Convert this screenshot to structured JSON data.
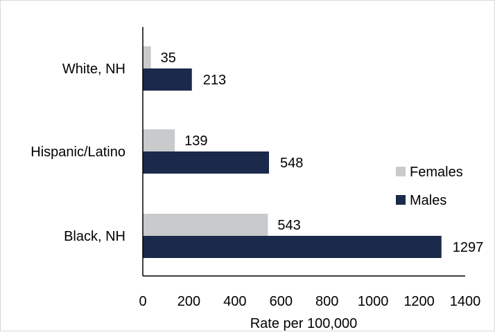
{
  "chart_data": {
    "type": "bar",
    "orientation": "horizontal",
    "categories": [
      "White, NH",
      "Hispanic/Latino",
      "Black, NH"
    ],
    "series": [
      {
        "name": "Females",
        "values": [
          35,
          139,
          543
        ],
        "color": "#c8cacb"
      },
      {
        "name": "Males",
        "values": [
          213,
          548,
          1297
        ],
        "color": "#1b2a4a"
      }
    ],
    "xlabel": "Rate per 100,000",
    "ylabel": "",
    "title": "",
    "xlim": [
      0,
      1400
    ],
    "xticks": [
      "0",
      "200",
      "400",
      "600",
      "800",
      "1000",
      "1200",
      "1400"
    ],
    "data_labels": [
      [
        "35",
        "139",
        "543"
      ],
      [
        "213",
        "548",
        "1297"
      ]
    ],
    "legend": {
      "position": "right",
      "entries": [
        "Females",
        "Males"
      ]
    },
    "grid": false
  }
}
